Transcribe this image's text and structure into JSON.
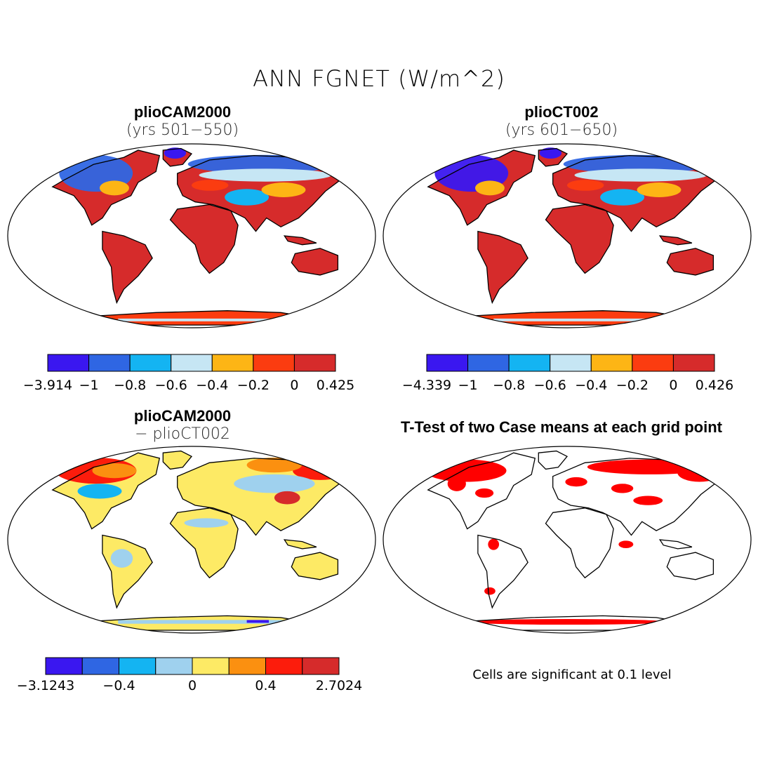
{
  "figure": {
    "title": "ANN FGNET (W/m^2)"
  },
  "panels": [
    {
      "id": "top-left",
      "title": "plioCAM2000",
      "subtitle": "(yrs 501−550)",
      "colorbar": {
        "colors": [
          "#3a17f0",
          "#2f66e3",
          "#14b4f2",
          "#c6e6f4",
          "#fdb515",
          "#fb3c10",
          "#d62b2b"
        ],
        "labels": [
          "−3.914",
          "−1",
          "−0.8",
          "−0.6",
          "−0.4",
          "−0.2",
          "0",
          "0.425"
        ]
      }
    },
    {
      "id": "top-right",
      "title": "plioCT002",
      "subtitle": "(yrs 601−650)",
      "colorbar": {
        "colors": [
          "#3a17f0",
          "#2f66e3",
          "#14b4f2",
          "#c6e6f4",
          "#fdb515",
          "#fb3c10",
          "#d62b2b"
        ],
        "labels": [
          "−4.339",
          "−1",
          "−0.8",
          "−0.6",
          "−0.4",
          "−0.2",
          "0",
          "0.426"
        ]
      }
    },
    {
      "id": "bottom-left",
      "title": "plioCAM2000",
      "subtitle": "− plioCT002",
      "colorbar": {
        "colors": [
          "#3a17f0",
          "#2f66e3",
          "#14b4f2",
          "#9fd1ee",
          "#fdea65",
          "#fb9010",
          "#fc1c0c",
          "#d62b2b"
        ],
        "labels": [
          "−3.1243",
          "−0.4",
          "0",
          "0.4",
          "2.7024"
        ],
        "label_boundaries": [
          0,
          2,
          4,
          6,
          8
        ]
      }
    },
    {
      "id": "bottom-right",
      "title": "T-Test of two Case means at each grid point",
      "note": "Cells are significant at 0.1 level",
      "significant_color": "#ff0000"
    }
  ]
}
